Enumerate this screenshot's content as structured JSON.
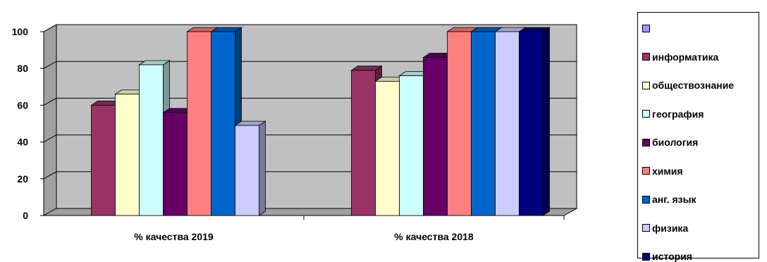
{
  "chart_data": {
    "type": "bar",
    "variant": "3d-clustered",
    "categories": [
      "% качества 2019",
      "% качества 2018"
    ],
    "ylim": [
      0,
      100
    ],
    "yticks": [
      0,
      20,
      40,
      60,
      80,
      100
    ],
    "grid": true,
    "legend_position": "right",
    "series": [
      {
        "name": "",
        "color": "#9999ff",
        "values": [
          null,
          null
        ]
      },
      {
        "name": "информатика",
        "color": "#993366",
        "values": [
          60,
          79
        ]
      },
      {
        "name": "обществознание",
        "color": "#ffffcc",
        "values": [
          66,
          73
        ]
      },
      {
        "name": "география",
        "color": "#ccffff",
        "values": [
          82,
          76
        ]
      },
      {
        "name": "биология",
        "color": "#660066",
        "values": [
          56,
          86
        ]
      },
      {
        "name": "химия",
        "color": "#ff8080",
        "values": [
          100,
          100
        ]
      },
      {
        "name": "анг. язык",
        "color": "#0066cc",
        "values": [
          100,
          100
        ]
      },
      {
        "name": "физика",
        "color": "#ccccff",
        "values": [
          49,
          100
        ]
      },
      {
        "name": "история",
        "color": "#000080",
        "values": [
          null,
          100
        ]
      }
    ]
  }
}
